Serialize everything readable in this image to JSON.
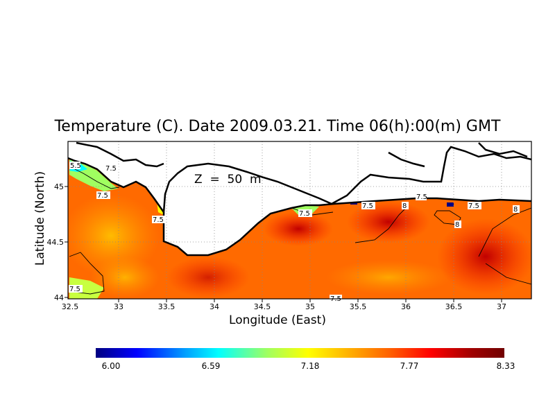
{
  "title": "Temperature (C). Date 2009.03.21. Time 06(h):00(m) GMT",
  "depth_label": "Z  =  50  m",
  "chart_data": {
    "type": "heatmap",
    "xlabel": "Longitude (East)",
    "ylabel": "Latitude (North)",
    "xlim": [
      32.5,
      37.3
    ],
    "ylim": [
      44.0,
      45.35
    ],
    "x_ticks": [
      "32.5",
      "33",
      "33.5",
      "34",
      "34.5",
      "35",
      "35.5",
      "36",
      "36.5",
      "37"
    ],
    "y_ticks": [
      "44",
      "44.5",
      "45"
    ],
    "grid": true,
    "colorbar": {
      "min": 6.0,
      "max": 8.33,
      "tick_labels": [
        "6.00",
        "6.59",
        "7.18",
        "7.77",
        "8.33"
      ],
      "colors": [
        "#000080",
        "#0000ff",
        "#00a0ff",
        "#00ffff",
        "#a0ff60",
        "#ffff00",
        "#ffb000",
        "#ff6000",
        "#ff0000",
        "#a00000",
        "#700000"
      ]
    },
    "contour_labels": [
      "5.5",
      "7.5",
      "7.5",
      "7.5",
      "7.5",
      "7.5",
      "7.5",
      "7.5",
      "7.5",
      "7.5",
      "7.5",
      "8",
      "8",
      "8"
    ]
  }
}
